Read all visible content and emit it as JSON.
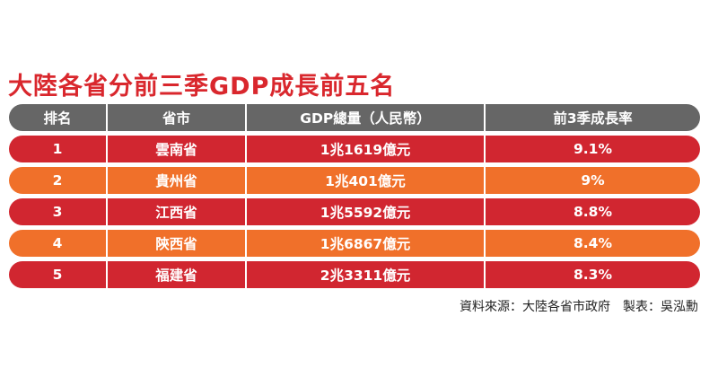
{
  "title": "大陸各省分前三季GDP成長前五名",
  "headers": [
    "排名",
    "省市",
    "GDP總量（人民幣）",
    "前3季成長率"
  ],
  "rows": [
    {
      "rank": "1",
      "province": "雲南省",
      "gdp": "1兆1619億元",
      "growth": "9.1%"
    },
    {
      "rank": "2",
      "province": "貴州省",
      "gdp": "1兆401億元",
      "growth": "9%"
    },
    {
      "rank": "3",
      "province": "江西省",
      "gdp": "1兆5592億元",
      "growth": "8.8%"
    },
    {
      "rank": "4",
      "province": "陝西省",
      "gdp": "1兆6867億元",
      "growth": "8.4%"
    },
    {
      "rank": "5",
      "province": "福建省",
      "gdp": "2兆3311億元",
      "growth": "8.3%"
    }
  ],
  "footer": "資料來源：大陸各省市政府　製表：吳泓勳",
  "colors": {
    "title": "#d9272d",
    "header": "#666666",
    "red_row": "#d12630",
    "orange_row": "#f0702a"
  }
}
